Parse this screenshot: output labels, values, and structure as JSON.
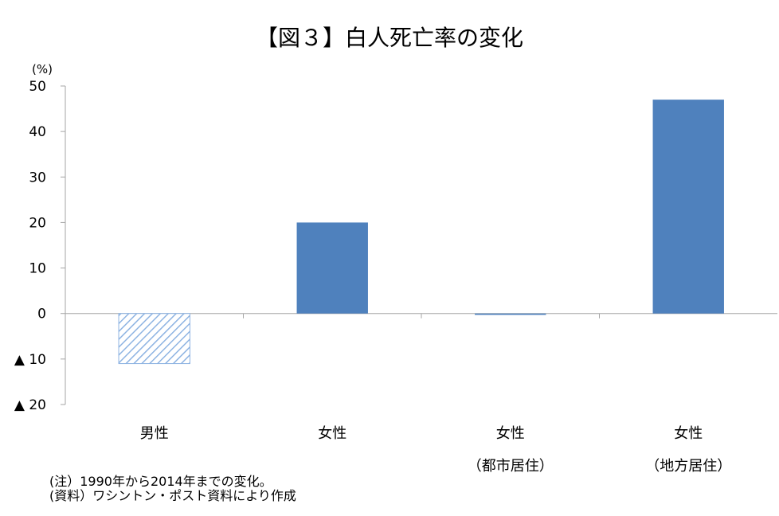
{
  "chart_data": {
    "type": "bar",
    "title": "【図３】白人死亡率の変化",
    "unit_label": "(%)",
    "ylim": [
      -20,
      50
    ],
    "y_ticks": [
      {
        "value": 50,
        "label": "50"
      },
      {
        "value": 40,
        "label": "40"
      },
      {
        "value": 30,
        "label": "30"
      },
      {
        "value": 20,
        "label": "20"
      },
      {
        "value": 10,
        "label": "10"
      },
      {
        "value": 0,
        "label": "0"
      },
      {
        "value": -10,
        "label": "▲ 10"
      },
      {
        "value": -20,
        "label": "▲ 20"
      }
    ],
    "categories": [
      {
        "line1": "男性",
        "line2": ""
      },
      {
        "line1": "女性",
        "line2": ""
      },
      {
        "line1": "女性",
        "line2": "（都市居住）"
      },
      {
        "line1": "女性",
        "line2": "（地方居住）"
      }
    ],
    "values": [
      -11,
      20,
      -0.3,
      47
    ],
    "bar_styles": [
      "hatched",
      "solid",
      "solid",
      "solid"
    ],
    "grid": false,
    "colors": {
      "bar": "#4F81BD",
      "hatch": "#8DB3E2",
      "axis": "#A6A6A6"
    }
  },
  "notes": [
    "(注）1990年から2014年までの変化。",
    "(資料）ワシントン・ポスト資料により作成"
  ]
}
